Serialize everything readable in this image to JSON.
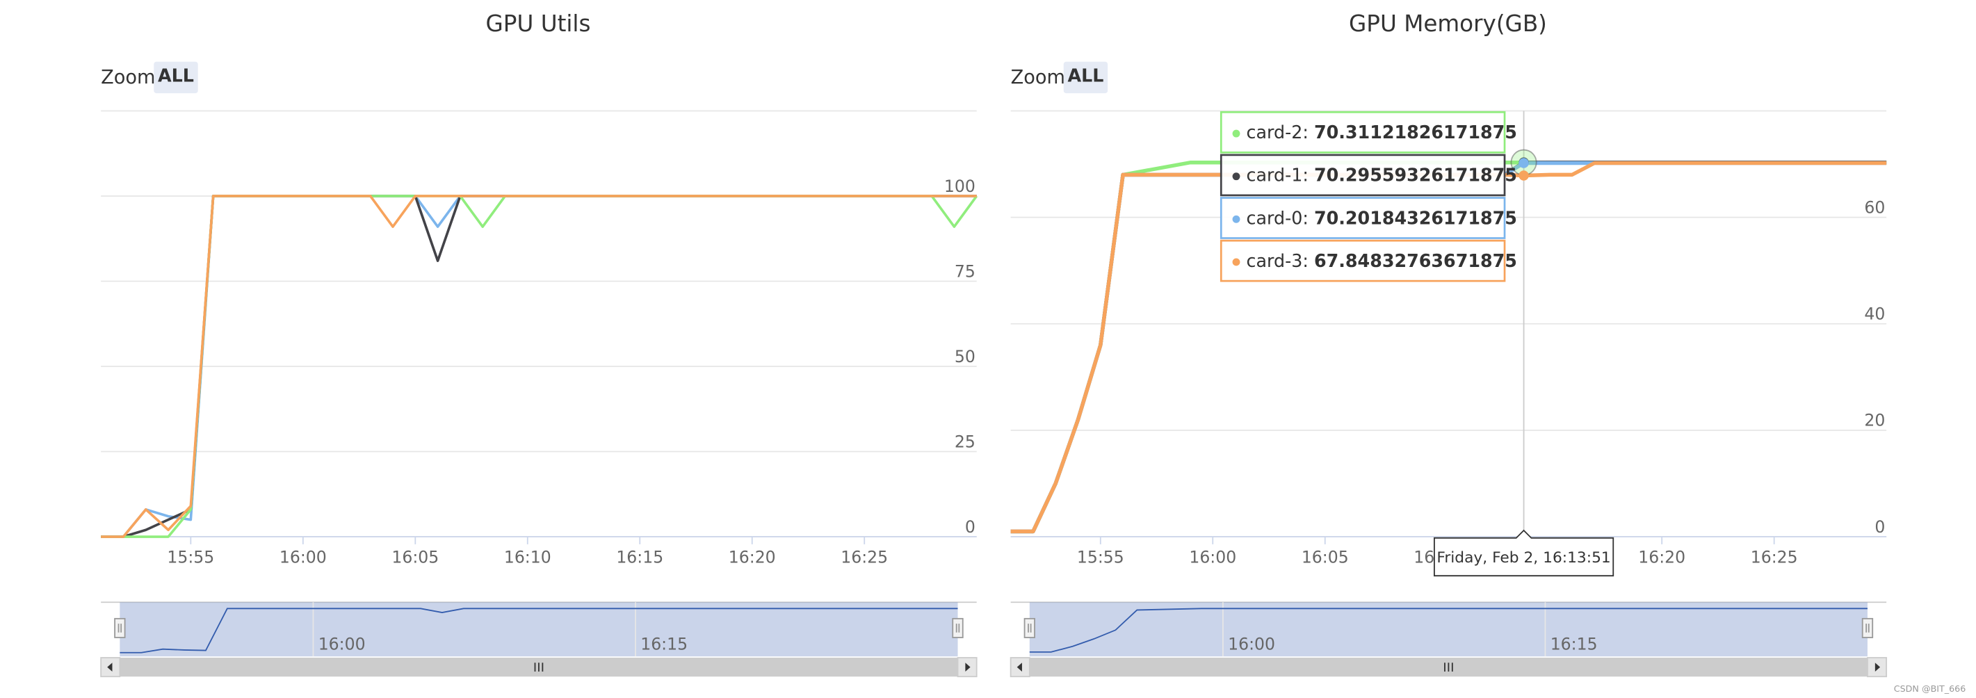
{
  "chart_data": [
    {
      "type": "line",
      "title": "GPU Utils",
      "zoom_label": "Zoom",
      "zoom_button": "ALL",
      "x": [
        "15:51",
        "15:52",
        "15:53",
        "15:54",
        "15:55",
        "15:56",
        "16:03",
        "16:04",
        "16:05",
        "16:06",
        "16:07",
        "16:08",
        "16:09",
        "16:28",
        "16:29",
        "16:30"
      ],
      "series": [
        {
          "color": "#7cb5ec",
          "values": [
            0,
            0,
            8,
            6,
            5,
            100,
            100,
            100,
            100,
            91,
            100,
            100,
            100,
            100,
            100,
            100
          ]
        },
        {
          "color": "#434348",
          "values": [
            0,
            0,
            2,
            5,
            8,
            100,
            100,
            100,
            100,
            81,
            100,
            100,
            100,
            100,
            100,
            100
          ]
        },
        {
          "color": "#90ed7d",
          "values": [
            0,
            0,
            0,
            0,
            8,
            100,
            100,
            100,
            100,
            100,
            100,
            91,
            100,
            100,
            91,
            100
          ]
        },
        {
          "color": "#f7a35c",
          "values": [
            0,
            0,
            8,
            2,
            9,
            100,
            100,
            91,
            100,
            100,
            100,
            100,
            100,
            100,
            100,
            100
          ]
        }
      ],
      "xlim": [
        "15:51",
        "16:30"
      ],
      "xticks": [
        "15:55",
        "16:00",
        "16:05",
        "16:10",
        "16:15",
        "16:20",
        "16:25"
      ],
      "ylim": [
        0,
        125
      ],
      "yticks": [
        0,
        25,
        50,
        75,
        100
      ],
      "grid": true,
      "navigator": {
        "xticks": [
          "16:00",
          "16:15"
        ]
      }
    },
    {
      "type": "line",
      "title": "GPU Memory(GB)",
      "zoom_label": "Zoom",
      "zoom_button": "ALL",
      "x": [
        "15:51",
        "15:52",
        "15:53",
        "15:54",
        "15:55",
        "15:56",
        "15:59",
        "16:13",
        "16:13:51",
        "16:15",
        "16:16",
        "16:17",
        "16:30"
      ],
      "series": [
        {
          "name": "card-2",
          "color": "#90ed7d",
          "values": [
            1,
            1,
            10,
            22,
            36,
            68,
            70.3,
            70.3,
            70.31121826171875,
            70.3,
            70.3,
            70.3,
            70.3
          ]
        },
        {
          "name": "card-1",
          "color": "#434348",
          "values": [
            1,
            1,
            10,
            22,
            36,
            68,
            68,
            68,
            70.29559326171875,
            70.3,
            70.3,
            70.3,
            70.3
          ]
        },
        {
          "name": "card-0",
          "color": "#7cb5ec",
          "values": [
            1,
            1,
            10,
            22,
            36,
            68,
            68,
            68,
            70.20184326171875,
            70.2,
            70.2,
            70.2,
            70.2
          ]
        },
        {
          "name": "card-3",
          "color": "#f7a35c",
          "values": [
            1,
            1,
            10,
            22,
            36,
            68,
            68,
            68,
            67.84832763671875,
            68,
            68,
            70.2,
            70.2
          ]
        }
      ],
      "xlim": [
        "15:51",
        "16:30"
      ],
      "xticks": [
        "15:55",
        "16:00",
        "16:05",
        "16:10",
        "16:15",
        "16:20",
        "16:25"
      ],
      "ylim": [
        0,
        80
      ],
      "yticks": [
        0,
        20,
        40,
        60
      ],
      "grid": true,
      "tooltip": {
        "header": "Friday, Feb 2, 16:13:51"
      },
      "navigator": {
        "xticks": [
          "16:00",
          "16:15"
        ]
      }
    }
  ],
  "watermark": "CSDN @BIT_666"
}
